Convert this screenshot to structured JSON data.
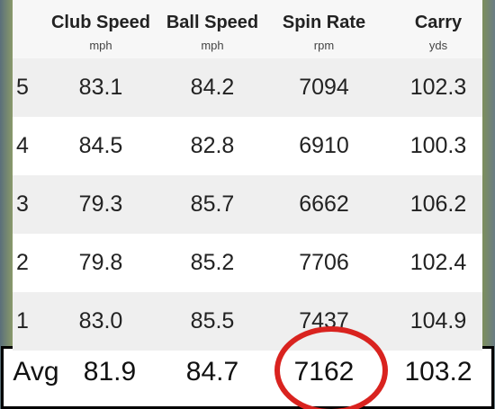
{
  "header": {
    "columns": [
      {
        "title": "Club Speed",
        "unit": "mph"
      },
      {
        "title": "Ball Speed",
        "unit": "mph"
      },
      {
        "title": "Spin Rate",
        "unit": "rpm"
      },
      {
        "title": "Carry",
        "unit": "yds"
      }
    ]
  },
  "rows": [
    {
      "label": "5",
      "values": [
        "83.1",
        "84.2",
        "7094",
        "102.3"
      ]
    },
    {
      "label": "4",
      "values": [
        "84.5",
        "82.8",
        "6910",
        "100.3"
      ]
    },
    {
      "label": "3",
      "values": [
        "79.3",
        "85.7",
        "6662",
        "106.2"
      ]
    },
    {
      "label": "2",
      "values": [
        "79.8",
        "85.2",
        "7706",
        "102.4"
      ]
    },
    {
      "label": "1",
      "values": [
        "83.0",
        "85.5",
        "7437",
        "104.9"
      ]
    }
  ],
  "average": {
    "label": "Avg",
    "values": [
      "81.9",
      "84.7",
      "7162",
      "103.2"
    ]
  }
}
